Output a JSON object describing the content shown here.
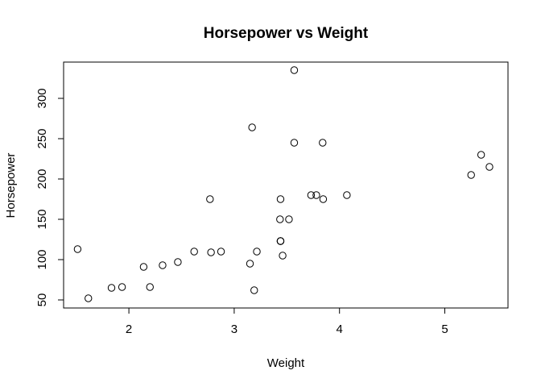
{
  "chart_data": {
    "type": "scatter",
    "title": "Horsepower vs Weight",
    "xlabel": "Weight",
    "ylabel": "Horsepower",
    "xlim": [
      1.38,
      5.6
    ],
    "ylim": [
      40,
      345
    ],
    "xticks": [
      2,
      3,
      4,
      5
    ],
    "yticks": [
      50,
      100,
      150,
      200,
      250,
      300
    ],
    "grid": false,
    "legend": "none",
    "marker": "open-circle",
    "x": [
      1.513,
      1.615,
      1.835,
      1.935,
      2.14,
      2.2,
      2.32,
      2.465,
      2.62,
      2.77,
      2.78,
      2.875,
      3.15,
      3.17,
      3.19,
      3.215,
      3.435,
      3.44,
      3.44,
      3.44,
      3.44,
      3.46,
      3.52,
      3.57,
      3.57,
      3.73,
      3.78,
      3.84,
      3.845,
      4.07,
      5.25,
      5.345,
      5.424
    ],
    "y": [
      113,
      52,
      65,
      66,
      91,
      66,
      93,
      97,
      110,
      175,
      109,
      110,
      95,
      264,
      62,
      110,
      150,
      123,
      123,
      175,
      123,
      105,
      150,
      245,
      335,
      180,
      180,
      245,
      175,
      180,
      205,
      230,
      215
    ]
  }
}
